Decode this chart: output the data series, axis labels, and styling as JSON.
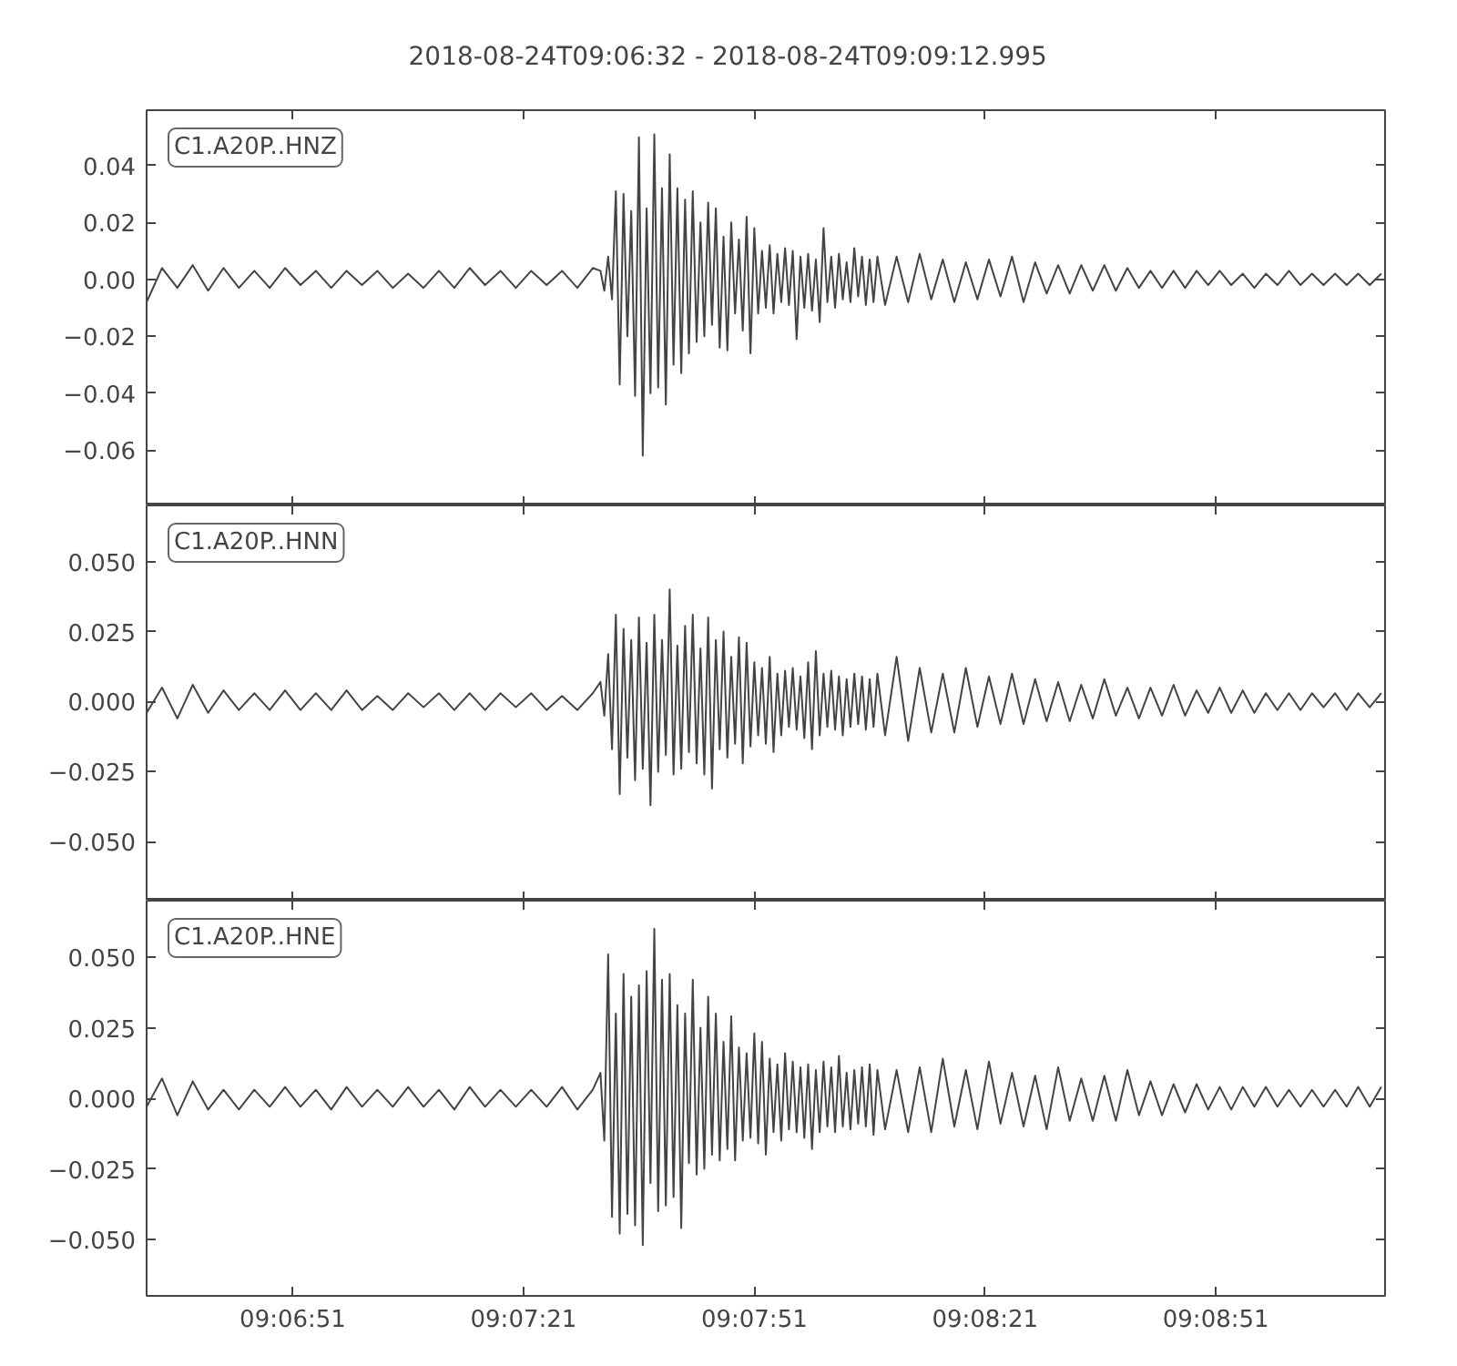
{
  "chart_data": [
    {
      "type": "line",
      "title": "2018-08-24T09:06:32  -  2018-08-24T09:09:12.995",
      "annotations": [
        "C1.A20P..HNZ"
      ],
      "x": [
        "2018-08-24T09:06:32",
        "2018-08-24T09:06:34",
        "2018-08-24T09:06:36",
        "2018-08-24T09:06:38",
        "2018-08-24T09:06:40",
        "2018-08-24T09:06:42",
        "2018-08-24T09:06:44",
        "2018-08-24T09:06:46",
        "2018-08-24T09:06:48",
        "2018-08-24T09:06:50",
        "2018-08-24T09:06:52",
        "2018-08-24T09:06:54",
        "2018-08-24T09:06:56",
        "2018-08-24T09:06:58",
        "2018-08-24T09:07:00",
        "2018-08-24T09:07:02",
        "2018-08-24T09:07:04",
        "2018-08-24T09:07:06",
        "2018-08-24T09:07:08",
        "2018-08-24T09:07:10",
        "2018-08-24T09:07:12",
        "2018-08-24T09:07:14",
        "2018-08-24T09:07:16",
        "2018-08-24T09:07:18",
        "2018-08-24T09:07:20",
        "2018-08-24T09:07:22",
        "2018-08-24T09:07:24",
        "2018-08-24T09:07:26",
        "2018-08-24T09:07:28",
        "2018-08-24T09:07:30",
        "2018-08-24T09:07:31",
        "2018-08-24T09:07:31.5",
        "2018-08-24T09:07:32",
        "2018-08-24T09:07:32.5",
        "2018-08-24T09:07:33",
        "2018-08-24T09:07:33.5",
        "2018-08-24T09:07:34",
        "2018-08-24T09:07:34.5",
        "2018-08-24T09:07:35",
        "2018-08-24T09:07:35.5",
        "2018-08-24T09:07:36",
        "2018-08-24T09:07:36.5",
        "2018-08-24T09:07:37",
        "2018-08-24T09:07:37.5",
        "2018-08-24T09:07:38",
        "2018-08-24T09:07:38.5",
        "2018-08-24T09:07:39",
        "2018-08-24T09:07:39.5",
        "2018-08-24T09:07:40",
        "2018-08-24T09:07:40.5",
        "2018-08-24T09:07:41",
        "2018-08-24T09:07:41.5",
        "2018-08-24T09:07:42",
        "2018-08-24T09:07:42.5",
        "2018-08-24T09:07:43",
        "2018-08-24T09:07:43.5",
        "2018-08-24T09:07:44",
        "2018-08-24T09:07:44.5",
        "2018-08-24T09:07:45",
        "2018-08-24T09:07:45.5",
        "2018-08-24T09:07:46",
        "2018-08-24T09:07:46.5",
        "2018-08-24T09:07:47",
        "2018-08-24T09:07:47.5",
        "2018-08-24T09:07:48",
        "2018-08-24T09:07:48.5",
        "2018-08-24T09:07:49",
        "2018-08-24T09:07:49.5",
        "2018-08-24T09:07:50",
        "2018-08-24T09:07:50.5",
        "2018-08-24T09:07:51",
        "2018-08-24T09:07:51.5",
        "2018-08-24T09:07:52",
        "2018-08-24T09:07:52.5",
        "2018-08-24T09:07:53",
        "2018-08-24T09:07:53.5",
        "2018-08-24T09:07:54",
        "2018-08-24T09:07:54.5",
        "2018-08-24T09:07:55",
        "2018-08-24T09:07:55.5",
        "2018-08-24T09:07:56",
        "2018-08-24T09:07:56.5",
        "2018-08-24T09:07:57",
        "2018-08-24T09:07:57.5",
        "2018-08-24T09:07:58",
        "2018-08-24T09:07:58.5",
        "2018-08-24T09:07:59",
        "2018-08-24T09:07:59.5",
        "2018-08-24T09:08:00",
        "2018-08-24T09:08:00.5",
        "2018-08-24T09:08:01",
        "2018-08-24T09:08:01.5",
        "2018-08-24T09:08:02",
        "2018-08-24T09:08:02.5",
        "2018-08-24T09:08:03",
        "2018-08-24T09:08:03.5",
        "2018-08-24T09:08:04",
        "2018-08-24T09:08:04.5",
        "2018-08-24T09:08:05",
        "2018-08-24T09:08:05.5",
        "2018-08-24T09:08:06",
        "2018-08-24T09:08:06.5",
        "2018-08-24T09:08:07",
        "2018-08-24T09:08:08",
        "2018-08-24T09:08:09.5",
        "2018-08-24T09:08:11",
        "2018-08-24T09:08:12.5",
        "2018-08-24T09:08:14",
        "2018-08-24T09:08:15.5",
        "2018-08-24T09:08:17",
        "2018-08-24T09:08:18.5",
        "2018-08-24T09:08:20",
        "2018-08-24T09:08:21.5",
        "2018-08-24T09:08:23",
        "2018-08-24T09:08:24.5",
        "2018-08-24T09:08:26",
        "2018-08-24T09:08:27.5",
        "2018-08-24T09:08:29",
        "2018-08-24T09:08:30.5",
        "2018-08-24T09:08:32",
        "2018-08-24T09:08:33.5",
        "2018-08-24T09:08:35",
        "2018-08-24T09:08:36.5",
        "2018-08-24T09:08:38",
        "2018-08-24T09:08:39.5",
        "2018-08-24T09:08:41",
        "2018-08-24T09:08:42.5",
        "2018-08-24T09:08:44",
        "2018-08-24T09:08:45.5",
        "2018-08-24T09:08:47",
        "2018-08-24T09:08:48.5",
        "2018-08-24T09:08:50",
        "2018-08-24T09:08:51.5",
        "2018-08-24T09:08:53",
        "2018-08-24T09:08:54.5",
        "2018-08-24T09:08:56",
        "2018-08-24T09:08:57.5",
        "2018-08-24T09:08:59",
        "2018-08-24T09:09:00.5",
        "2018-08-24T09:09:02",
        "2018-08-24T09:09:03.5",
        "2018-08-24T09:09:05",
        "2018-08-24T09:09:06.5",
        "2018-08-24T09:09:08",
        "2018-08-24T09:09:09.5",
        "2018-08-24T09:09:11",
        "2018-08-24T09:09:12.5"
      ],
      "series": [
        {
          "color": "#444444",
          "values": [
            -0.008,
            0.004,
            -0.003,
            0.005,
            -0.004,
            0.004,
            -0.003,
            0.003,
            -0.003,
            0.004,
            -0.002,
            0.003,
            -0.003,
            0.003,
            -0.002,
            0.003,
            -0.003,
            0.002,
            -0.003,
            0.003,
            -0.003,
            0.004,
            -0.002,
            0.003,
            -0.003,
            0.003,
            -0.002,
            0.003,
            -0.003,
            0.004,
            0.003,
            -0.004,
            0.008,
            -0.007,
            0.031,
            -0.037,
            0.03,
            -0.02,
            0.024,
            -0.041,
            0.05,
            -0.062,
            0.025,
            -0.04,
            0.051,
            -0.038,
            0.032,
            -0.044,
            0.044,
            -0.03,
            0.032,
            -0.033,
            0.028,
            -0.026,
            0.031,
            -0.022,
            0.02,
            -0.02,
            0.027,
            -0.016,
            0.025,
            -0.024,
            0.015,
            -0.025,
            0.02,
            -0.012,
            0.014,
            -0.018,
            0.022,
            -0.026,
            0.018,
            -0.012,
            0.01,
            -0.01,
            0.012,
            -0.012,
            0.009,
            -0.008,
            0.011,
            -0.009,
            0.01,
            -0.021,
            0.008,
            -0.01,
            0.009,
            -0.011,
            0.007,
            -0.015,
            0.018,
            -0.008,
            0.008,
            -0.01,
            0.009,
            -0.007,
            0.006,
            -0.008,
            0.011,
            -0.006,
            0.008,
            -0.009,
            0.007,
            -0.008,
            0.008,
            -0.009,
            0.008,
            -0.008,
            0.009,
            -0.007,
            0.007,
            -0.008,
            0.006,
            -0.007,
            0.007,
            -0.006,
            0.008,
            -0.008,
            0.006,
            -0.005,
            0.005,
            -0.005,
            0.005,
            -0.004,
            0.005,
            -0.004,
            0.004,
            -0.003,
            0.003,
            -0.003,
            0.003,
            -0.003,
            0.003,
            -0.002,
            0.003,
            -0.002,
            0.002,
            -0.003,
            0.002,
            -0.002,
            0.003,
            -0.002,
            0.002,
            -0.002,
            0.002,
            -0.002,
            0.002,
            -0.002,
            0.002
          ]
        }
      ],
      "xlim": [
        "2018-08-24T09:06:32",
        "2018-08-24T09:09:12.995"
      ],
      "ylim": [
        -0.0795,
        0.0595
      ],
      "xticks": [
        {
          "value": "2018-08-24T09:06:51",
          "label": null
        },
        {
          "value": "2018-08-24T09:07:21",
          "label": null
        },
        {
          "value": "2018-08-24T09:07:51",
          "label": null
        },
        {
          "value": "2018-08-24T09:08:21",
          "label": null
        },
        {
          "value": "2018-08-24T09:08:51",
          "label": null
        }
      ],
      "yticks": [
        0.04,
        0.02,
        {
          "value": 0,
          "label": "0.00"
        },
        {
          "value": -0.02,
          "label": "−0.02"
        },
        {
          "value": -0.04,
          "label": "−0.04"
        },
        {
          "value": -0.06,
          "label": "−0.06"
        }
      ],
      "tick_labels": "y",
      "grid": false
    },
    {
      "type": "line",
      "annotations": [
        "C1.A20P..HNN"
      ],
      "x": [
        "2018-08-24T09:06:32",
        "2018-08-24T09:06:34",
        "2018-08-24T09:06:36",
        "2018-08-24T09:06:38",
        "2018-08-24T09:06:40",
        "2018-08-24T09:06:42",
        "2018-08-24T09:06:44",
        "2018-08-24T09:06:46",
        "2018-08-24T09:06:48",
        "2018-08-24T09:06:50",
        "2018-08-24T09:06:52",
        "2018-08-24T09:06:54",
        "2018-08-24T09:06:56",
        "2018-08-24T09:06:58",
        "2018-08-24T09:07:00",
        "2018-08-24T09:07:02",
        "2018-08-24T09:07:04",
        "2018-08-24T09:07:06",
        "2018-08-24T09:07:08",
        "2018-08-24T09:07:10",
        "2018-08-24T09:07:12",
        "2018-08-24T09:07:14",
        "2018-08-24T09:07:16",
        "2018-08-24T09:07:18",
        "2018-08-24T09:07:20",
        "2018-08-24T09:07:22",
        "2018-08-24T09:07:24",
        "2018-08-24T09:07:26",
        "2018-08-24T09:07:28",
        "2018-08-24T09:07:30",
        "2018-08-24T09:07:31",
        "2018-08-24T09:07:31.5",
        "2018-08-24T09:07:32",
        "2018-08-24T09:07:32.5",
        "2018-08-24T09:07:33",
        "2018-08-24T09:07:33.5",
        "2018-08-24T09:07:34",
        "2018-08-24T09:07:34.5",
        "2018-08-24T09:07:35",
        "2018-08-24T09:07:35.5",
        "2018-08-24T09:07:36",
        "2018-08-24T09:07:36.5",
        "2018-08-24T09:07:37",
        "2018-08-24T09:07:37.5",
        "2018-08-24T09:07:38",
        "2018-08-24T09:07:38.5",
        "2018-08-24T09:07:39",
        "2018-08-24T09:07:39.5",
        "2018-08-24T09:07:40",
        "2018-08-24T09:07:40.5",
        "2018-08-24T09:07:41",
        "2018-08-24T09:07:41.5",
        "2018-08-24T09:07:42",
        "2018-08-24T09:07:42.5",
        "2018-08-24T09:07:43",
        "2018-08-24T09:07:43.5",
        "2018-08-24T09:07:44",
        "2018-08-24T09:07:44.5",
        "2018-08-24T09:07:45",
        "2018-08-24T09:07:45.5",
        "2018-08-24T09:07:46",
        "2018-08-24T09:07:46.5",
        "2018-08-24T09:07:47",
        "2018-08-24T09:07:47.5",
        "2018-08-24T09:07:48",
        "2018-08-24T09:07:48.5",
        "2018-08-24T09:07:49",
        "2018-08-24T09:07:49.5",
        "2018-08-24T09:07:50",
        "2018-08-24T09:07:50.5",
        "2018-08-24T09:07:51",
        "2018-08-24T09:07:51.5",
        "2018-08-24T09:07:52",
        "2018-08-24T09:07:52.5",
        "2018-08-24T09:07:53",
        "2018-08-24T09:07:53.5",
        "2018-08-24T09:07:54",
        "2018-08-24T09:07:54.5",
        "2018-08-24T09:07:55",
        "2018-08-24T09:07:55.5",
        "2018-08-24T09:07:56",
        "2018-08-24T09:07:56.5",
        "2018-08-24T09:07:57",
        "2018-08-24T09:07:57.5",
        "2018-08-24T09:07:58",
        "2018-08-24T09:07:58.5",
        "2018-08-24T09:07:59",
        "2018-08-24T09:07:59.5",
        "2018-08-24T09:08:00",
        "2018-08-24T09:08:00.5",
        "2018-08-24T09:08:01",
        "2018-08-24T09:08:01.5",
        "2018-08-24T09:08:02",
        "2018-08-24T09:08:02.5",
        "2018-08-24T09:08:03",
        "2018-08-24T09:08:03.5",
        "2018-08-24T09:08:04",
        "2018-08-24T09:08:04.5",
        "2018-08-24T09:08:05",
        "2018-08-24T09:08:05.5",
        "2018-08-24T09:08:06",
        "2018-08-24T09:08:06.5",
        "2018-08-24T09:08:07",
        "2018-08-24T09:08:08",
        "2018-08-24T09:08:09.5",
        "2018-08-24T09:08:11",
        "2018-08-24T09:08:12.5",
        "2018-08-24T09:08:14",
        "2018-08-24T09:08:15.5",
        "2018-08-24T09:08:17",
        "2018-08-24T09:08:18.5",
        "2018-08-24T09:08:20",
        "2018-08-24T09:08:21.5",
        "2018-08-24T09:08:23",
        "2018-08-24T09:08:24.5",
        "2018-08-24T09:08:26",
        "2018-08-24T09:08:27.5",
        "2018-08-24T09:08:29",
        "2018-08-24T09:08:30.5",
        "2018-08-24T09:08:32",
        "2018-08-24T09:08:33.5",
        "2018-08-24T09:08:35",
        "2018-08-24T09:08:36.5",
        "2018-08-24T09:08:38",
        "2018-08-24T09:08:39.5",
        "2018-08-24T09:08:41",
        "2018-08-24T09:08:42.5",
        "2018-08-24T09:08:44",
        "2018-08-24T09:08:45.5",
        "2018-08-24T09:08:47",
        "2018-08-24T09:08:48.5",
        "2018-08-24T09:08:50",
        "2018-08-24T09:08:51.5",
        "2018-08-24T09:08:53",
        "2018-08-24T09:08:54.5",
        "2018-08-24T09:08:56",
        "2018-08-24T09:08:57.5",
        "2018-08-24T09:08:59",
        "2018-08-24T09:09:00.5",
        "2018-08-24T09:09:02",
        "2018-08-24T09:09:03.5",
        "2018-08-24T09:09:05",
        "2018-08-24T09:09:06.5",
        "2018-08-24T09:09:08",
        "2018-08-24T09:09:09.5",
        "2018-08-24T09:09:11",
        "2018-08-24T09:09:12.5"
      ],
      "series": [
        {
          "color": "#444444",
          "values": [
            -0.004,
            0.005,
            -0.006,
            0.006,
            -0.004,
            0.004,
            -0.003,
            0.003,
            -0.003,
            0.004,
            -0.003,
            0.003,
            -0.003,
            0.004,
            -0.003,
            0.002,
            -0.003,
            0.003,
            -0.002,
            0.003,
            -0.003,
            0.003,
            -0.003,
            0.003,
            -0.002,
            0.003,
            -0.003,
            0.002,
            -0.003,
            0.003,
            0.007,
            -0.005,
            0.017,
            -0.017,
            0.031,
            -0.033,
            0.026,
            -0.02,
            0.022,
            -0.028,
            0.03,
            -0.024,
            0.021,
            -0.037,
            0.031,
            -0.025,
            0.022,
            -0.019,
            0.04,
            -0.026,
            0.02,
            -0.024,
            0.027,
            -0.018,
            0.031,
            -0.022,
            0.019,
            -0.026,
            0.03,
            -0.031,
            0.022,
            -0.017,
            0.025,
            -0.02,
            0.016,
            -0.015,
            0.023,
            -0.022,
            0.021,
            -0.016,
            0.014,
            -0.012,
            0.012,
            -0.015,
            0.016,
            -0.018,
            0.01,
            -0.012,
            0.011,
            -0.009,
            0.012,
            -0.01,
            0.009,
            -0.013,
            0.014,
            -0.017,
            0.018,
            -0.012,
            0.01,
            -0.009,
            0.011,
            -0.01,
            0.009,
            -0.012,
            0.008,
            -0.009,
            0.01,
            -0.008,
            0.009,
            -0.01,
            0.008,
            -0.009,
            0.01,
            -0.012,
            0.016,
            -0.014,
            0.012,
            -0.011,
            0.01,
            -0.011,
            0.012,
            -0.009,
            0.009,
            -0.008,
            0.01,
            -0.008,
            0.008,
            -0.007,
            0.007,
            -0.007,
            0.006,
            -0.006,
            0.008,
            -0.005,
            0.005,
            -0.006,
            0.005,
            -0.005,
            0.006,
            -0.005,
            0.004,
            -0.004,
            0.005,
            -0.004,
            0.004,
            -0.004,
            0.003,
            -0.003,
            0.003,
            -0.003,
            0.003,
            -0.002,
            0.003,
            -0.003,
            0.003,
            -0.002,
            0.003
          ]
        }
      ],
      "xlim": [
        "2018-08-24T09:06:32",
        "2018-08-24T09:09:12.995"
      ],
      "ylim": [
        -0.071,
        0.07
      ],
      "xticks": [
        {
          "value": "2018-08-24T09:06:51",
          "label": null
        },
        {
          "value": "2018-08-24T09:07:21",
          "label": null
        },
        {
          "value": "2018-08-24T09:07:51",
          "label": null
        },
        {
          "value": "2018-08-24T09:08:21",
          "label": null
        },
        {
          "value": "2018-08-24T09:08:51",
          "label": null
        }
      ],
      "yticks": [
        {
          "value": 0.05,
          "label": "0.050"
        },
        0.025,
        {
          "value": 0,
          "label": "0.000"
        },
        {
          "value": -0.025,
          "label": "−0.025"
        },
        {
          "value": -0.05,
          "label": "−0.050"
        }
      ],
      "tick_labels": "y",
      "grid": false
    },
    {
      "type": "line",
      "annotations": [
        "C1.A20P..HNE"
      ],
      "x": [
        "2018-08-24T09:06:32",
        "2018-08-24T09:06:34",
        "2018-08-24T09:06:36",
        "2018-08-24T09:06:38",
        "2018-08-24T09:06:40",
        "2018-08-24T09:06:42",
        "2018-08-24T09:06:44",
        "2018-08-24T09:06:46",
        "2018-08-24T09:06:48",
        "2018-08-24T09:06:50",
        "2018-08-24T09:06:52",
        "2018-08-24T09:06:54",
        "2018-08-24T09:06:56",
        "2018-08-24T09:06:58",
        "2018-08-24T09:07:00",
        "2018-08-24T09:07:02",
        "2018-08-24T09:07:04",
        "2018-08-24T09:07:06",
        "2018-08-24T09:07:08",
        "2018-08-24T09:07:10",
        "2018-08-24T09:07:12",
        "2018-08-24T09:07:14",
        "2018-08-24T09:07:16",
        "2018-08-24T09:07:18",
        "2018-08-24T09:07:20",
        "2018-08-24T09:07:22",
        "2018-08-24T09:07:24",
        "2018-08-24T09:07:26",
        "2018-08-24T09:07:28",
        "2018-08-24T09:07:30",
        "2018-08-24T09:07:31",
        "2018-08-24T09:07:31.5",
        "2018-08-24T09:07:32",
        "2018-08-24T09:07:32.5",
        "2018-08-24T09:07:33",
        "2018-08-24T09:07:33.5",
        "2018-08-24T09:07:34",
        "2018-08-24T09:07:34.5",
        "2018-08-24T09:07:35",
        "2018-08-24T09:07:35.5",
        "2018-08-24T09:07:36",
        "2018-08-24T09:07:36.5",
        "2018-08-24T09:07:37",
        "2018-08-24T09:07:37.5",
        "2018-08-24T09:07:38",
        "2018-08-24T09:07:38.5",
        "2018-08-24T09:07:39",
        "2018-08-24T09:07:39.5",
        "2018-08-24T09:07:40",
        "2018-08-24T09:07:40.5",
        "2018-08-24T09:07:41",
        "2018-08-24T09:07:41.5",
        "2018-08-24T09:07:42",
        "2018-08-24T09:07:42.5",
        "2018-08-24T09:07:43",
        "2018-08-24T09:07:43.5",
        "2018-08-24T09:07:44",
        "2018-08-24T09:07:44.5",
        "2018-08-24T09:07:45",
        "2018-08-24T09:07:45.5",
        "2018-08-24T09:07:46",
        "2018-08-24T09:07:46.5",
        "2018-08-24T09:07:47",
        "2018-08-24T09:07:47.5",
        "2018-08-24T09:07:48",
        "2018-08-24T09:07:48.5",
        "2018-08-24T09:07:49",
        "2018-08-24T09:07:49.5",
        "2018-08-24T09:07:50",
        "2018-08-24T09:07:50.5",
        "2018-08-24T09:07:51",
        "2018-08-24T09:07:51.5",
        "2018-08-24T09:07:52",
        "2018-08-24T09:07:52.5",
        "2018-08-24T09:07:53",
        "2018-08-24T09:07:53.5",
        "2018-08-24T09:07:54",
        "2018-08-24T09:07:54.5",
        "2018-08-24T09:07:55",
        "2018-08-24T09:07:55.5",
        "2018-08-24T09:07:56",
        "2018-08-24T09:07:56.5",
        "2018-08-24T09:07:57",
        "2018-08-24T09:07:57.5",
        "2018-08-24T09:07:58",
        "2018-08-24T09:07:58.5",
        "2018-08-24T09:07:59",
        "2018-08-24T09:07:59.5",
        "2018-08-24T09:08:00",
        "2018-08-24T09:08:00.5",
        "2018-08-24T09:08:01",
        "2018-08-24T09:08:01.5",
        "2018-08-24T09:08:02",
        "2018-08-24T09:08:02.5",
        "2018-08-24T09:08:03",
        "2018-08-24T09:08:03.5",
        "2018-08-24T09:08:04",
        "2018-08-24T09:08:04.5",
        "2018-08-24T09:08:05",
        "2018-08-24T09:08:05.5",
        "2018-08-24T09:08:06",
        "2018-08-24T09:08:06.5",
        "2018-08-24T09:08:07",
        "2018-08-24T09:08:08",
        "2018-08-24T09:08:09.5",
        "2018-08-24T09:08:11",
        "2018-08-24T09:08:12.5",
        "2018-08-24T09:08:14",
        "2018-08-24T09:08:15.5",
        "2018-08-24T09:08:17",
        "2018-08-24T09:08:18.5",
        "2018-08-24T09:08:20",
        "2018-08-24T09:08:21.5",
        "2018-08-24T09:08:23",
        "2018-08-24T09:08:24.5",
        "2018-08-24T09:08:26",
        "2018-08-24T09:08:27.5",
        "2018-08-24T09:08:29",
        "2018-08-24T09:08:30.5",
        "2018-08-24T09:08:32",
        "2018-08-24T09:08:33.5",
        "2018-08-24T09:08:35",
        "2018-08-24T09:08:36.5",
        "2018-08-24T09:08:38",
        "2018-08-24T09:08:39.5",
        "2018-08-24T09:08:41",
        "2018-08-24T09:08:42.5",
        "2018-08-24T09:08:44",
        "2018-08-24T09:08:45.5",
        "2018-08-24T09:08:47",
        "2018-08-24T09:08:48.5",
        "2018-08-24T09:08:50",
        "2018-08-24T09:08:51.5",
        "2018-08-24T09:08:53",
        "2018-08-24T09:08:54.5",
        "2018-08-24T09:08:56",
        "2018-08-24T09:08:57.5",
        "2018-08-24T09:08:59",
        "2018-08-24T09:09:00.5",
        "2018-08-24T09:09:02",
        "2018-08-24T09:09:03.5",
        "2018-08-24T09:09:05",
        "2018-08-24T09:09:06.5",
        "2018-08-24T09:09:08",
        "2018-08-24T09:09:09.5",
        "2018-08-24T09:09:11",
        "2018-08-24T09:09:12.5"
      ],
      "series": [
        {
          "color": "#444444",
          "values": [
            -0.003,
            0.007,
            -0.006,
            0.006,
            -0.004,
            0.003,
            -0.004,
            0.003,
            -0.003,
            0.004,
            -0.003,
            0.003,
            -0.004,
            0.004,
            -0.003,
            0.003,
            -0.003,
            0.004,
            -0.003,
            0.003,
            -0.004,
            0.004,
            -0.003,
            0.003,
            -0.003,
            0.003,
            -0.003,
            0.004,
            -0.004,
            0.003,
            0.009,
            -0.015,
            0.051,
            -0.042,
            0.03,
            -0.048,
            0.044,
            -0.041,
            0.036,
            -0.045,
            0.04,
            -0.052,
            0.045,
            -0.03,
            0.06,
            -0.04,
            0.042,
            -0.038,
            0.044,
            -0.035,
            0.033,
            -0.046,
            0.03,
            -0.023,
            0.042,
            -0.027,
            0.025,
            -0.025,
            0.036,
            -0.02,
            0.03,
            -0.022,
            0.02,
            -0.018,
            0.029,
            -0.022,
            0.018,
            -0.015,
            0.016,
            -0.014,
            0.023,
            -0.016,
            0.02,
            -0.02,
            0.014,
            -0.012,
            0.012,
            -0.015,
            0.016,
            -0.011,
            0.013,
            -0.012,
            0.011,
            -0.014,
            0.012,
            -0.018,
            0.01,
            -0.012,
            0.013,
            -0.01,
            0.011,
            -0.012,
            0.015,
            -0.01,
            0.009,
            -0.011,
            0.01,
            -0.009,
            0.011,
            -0.01,
            0.012,
            -0.013,
            0.01,
            -0.011,
            0.01,
            -0.012,
            0.011,
            -0.012,
            0.014,
            -0.01,
            0.01,
            -0.011,
            0.013,
            -0.009,
            0.009,
            -0.01,
            0.008,
            -0.011,
            0.011,
            -0.008,
            0.007,
            -0.008,
            0.008,
            -0.008,
            0.01,
            -0.006,
            0.006,
            -0.006,
            0.005,
            -0.005,
            0.005,
            -0.004,
            0.004,
            -0.004,
            0.004,
            -0.003,
            0.004,
            -0.003,
            0.003,
            -0.003,
            0.003,
            -0.003,
            0.003,
            -0.003,
            0.004,
            -0.003,
            0.004
          ]
        }
      ],
      "xlim": [
        "2018-08-24T09:06:32",
        "2018-08-24T09:09:12.995"
      ],
      "ylim": [
        -0.07,
        0.07
      ],
      "xticks": [
        {
          "value": "2018-08-24T09:06:51",
          "label": "09:06:51"
        },
        {
          "value": "2018-08-24T09:07:21",
          "label": "09:07:21"
        },
        {
          "value": "2018-08-24T09:07:51",
          "label": "09:07:51"
        },
        {
          "value": "2018-08-24T09:08:21",
          "label": "09:08:21"
        },
        {
          "value": "2018-08-24T09:08:51",
          "label": "09:08:51"
        }
      ],
      "yticks": [
        {
          "value": 0.05,
          "label": "0.050"
        },
        0.025,
        {
          "value": 0,
          "label": "0.000"
        },
        {
          "value": -0.025,
          "label": "−0.025"
        },
        {
          "value": -0.05,
          "label": "−0.050"
        }
      ],
      "grid": false
    }
  ]
}
